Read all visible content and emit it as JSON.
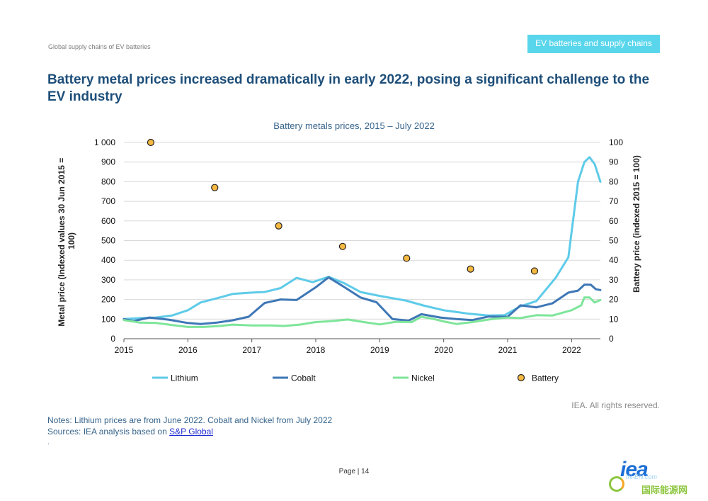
{
  "header": {
    "left_text": "Global supply chains of EV batteries",
    "right_badge": "EV batteries and supply chains"
  },
  "headline": "Battery metal prices increased dramatically in early 2022, posing a significant challenge to the EV industry",
  "chart_data": {
    "type": "line",
    "title": "Battery metals prices, 2015 – July 2022",
    "ylabel_left": "Metal price (Indexed values 30 Jun 2015 = 100)",
    "ylabel_right": "Battery price (indexed 2015 = 100)",
    "xlim": [
      2015,
      2022.45
    ],
    "ylim_left": [
      0,
      1000
    ],
    "ylim_right": [
      0,
      100
    ],
    "x_ticks": [
      "2015",
      "2016",
      "2017",
      "2018",
      "2019",
      "2020",
      "2021",
      "2022"
    ],
    "y_ticks_left": [
      "0",
      "100",
      "200",
      "300",
      "400",
      "500",
      "600",
      "700",
      "800",
      "900",
      "1 000"
    ],
    "y_ticks_right": [
      "0",
      "10",
      "20",
      "30",
      "40",
      "50",
      "60",
      "70",
      "80",
      "90",
      "100"
    ],
    "grid": true,
    "legend_position": "bottom",
    "series": [
      {
        "name": "Lithium",
        "color": "#5ecbe8",
        "type": "line",
        "axis": "left",
        "points": [
          [
            2015.0,
            100
          ],
          [
            2015.25,
            105
          ],
          [
            2015.5,
            108
          ],
          [
            2015.75,
            118
          ],
          [
            2016.0,
            145
          ],
          [
            2016.2,
            185
          ],
          [
            2016.5,
            210
          ],
          [
            2016.7,
            228
          ],
          [
            2017.0,
            235
          ],
          [
            2017.2,
            238
          ],
          [
            2017.45,
            258
          ],
          [
            2017.7,
            310
          ],
          [
            2017.95,
            288
          ],
          [
            2018.2,
            315
          ],
          [
            2018.45,
            282
          ],
          [
            2018.7,
            238
          ],
          [
            2019.0,
            218
          ],
          [
            2019.4,
            195
          ],
          [
            2019.7,
            168
          ],
          [
            2020.0,
            145
          ],
          [
            2020.4,
            127
          ],
          [
            2020.7,
            118
          ],
          [
            2020.95,
            120
          ],
          [
            2021.2,
            165
          ],
          [
            2021.45,
            192
          ],
          [
            2021.75,
            310
          ],
          [
            2021.95,
            415
          ],
          [
            2022.1,
            800
          ],
          [
            2022.2,
            900
          ],
          [
            2022.28,
            925
          ],
          [
            2022.36,
            890
          ],
          [
            2022.45,
            800
          ]
        ]
      },
      {
        "name": "Cobalt",
        "color": "#3e77b6",
        "type": "line",
        "axis": "left",
        "points": [
          [
            2015.0,
            100
          ],
          [
            2015.15,
            90
          ],
          [
            2015.4,
            108
          ],
          [
            2015.7,
            97
          ],
          [
            2016.0,
            80
          ],
          [
            2016.2,
            75
          ],
          [
            2016.45,
            82
          ],
          [
            2016.7,
            94
          ],
          [
            2016.95,
            112
          ],
          [
            2017.2,
            182
          ],
          [
            2017.45,
            200
          ],
          [
            2017.7,
            197
          ],
          [
            2018.0,
            262
          ],
          [
            2018.2,
            313
          ],
          [
            2018.45,
            262
          ],
          [
            2018.7,
            210
          ],
          [
            2018.95,
            186
          ],
          [
            2019.2,
            100
          ],
          [
            2019.45,
            92
          ],
          [
            2019.65,
            125
          ],
          [
            2019.95,
            108
          ],
          [
            2020.2,
            100
          ],
          [
            2020.45,
            95
          ],
          [
            2020.7,
            113
          ],
          [
            2021.0,
            112
          ],
          [
            2021.2,
            170
          ],
          [
            2021.45,
            160
          ],
          [
            2021.7,
            180
          ],
          [
            2021.95,
            235
          ],
          [
            2022.1,
            245
          ],
          [
            2022.2,
            275
          ],
          [
            2022.3,
            275
          ],
          [
            2022.38,
            252
          ],
          [
            2022.45,
            248
          ]
        ]
      },
      {
        "name": "Nickel",
        "color": "#7ee59a",
        "type": "line",
        "axis": "left",
        "points": [
          [
            2015.0,
            95
          ],
          [
            2015.25,
            82
          ],
          [
            2015.5,
            80
          ],
          [
            2015.75,
            70
          ],
          [
            2016.0,
            60
          ],
          [
            2016.25,
            60
          ],
          [
            2016.5,
            65
          ],
          [
            2016.7,
            72
          ],
          [
            2017.0,
            68
          ],
          [
            2017.3,
            68
          ],
          [
            2017.5,
            65
          ],
          [
            2017.75,
            72
          ],
          [
            2018.0,
            85
          ],
          [
            2018.25,
            90
          ],
          [
            2018.5,
            98
          ],
          [
            2018.75,
            85
          ],
          [
            2019.0,
            73
          ],
          [
            2019.25,
            86
          ],
          [
            2019.5,
            85
          ],
          [
            2019.65,
            112
          ],
          [
            2019.85,
            100
          ],
          [
            2020.0,
            88
          ],
          [
            2020.2,
            75
          ],
          [
            2020.45,
            85
          ],
          [
            2020.75,
            100
          ],
          [
            2021.0,
            108
          ],
          [
            2021.2,
            105
          ],
          [
            2021.45,
            120
          ],
          [
            2021.7,
            118
          ],
          [
            2022.0,
            145
          ],
          [
            2022.15,
            170
          ],
          [
            2022.2,
            210
          ],
          [
            2022.28,
            210
          ],
          [
            2022.36,
            185
          ],
          [
            2022.45,
            197
          ]
        ]
      },
      {
        "name": "Battery",
        "color": "#f5b942",
        "type": "scatter",
        "axis": "right",
        "points": [
          [
            2015.42,
            100
          ],
          [
            2016.42,
            77
          ],
          [
            2017.42,
            57.5
          ],
          [
            2018.42,
            47
          ],
          [
            2019.42,
            41
          ],
          [
            2020.42,
            35.5
          ],
          [
            2021.42,
            34.5
          ]
        ]
      }
    ]
  },
  "rights": "IEA. All rights reserved.",
  "notes": {
    "line1": "Notes: Lithium prices are from June 2022. Cobalt and Nickel from July 2022",
    "line2_prefix": "Sources: IEA analysis based on ",
    "line2_link": "S&P Global",
    "trailing": "."
  },
  "page": {
    "label": "Page | 14"
  },
  "logo": {
    "text": "iea",
    "watermark_url": "IN-EN.com",
    "watermark_cn": "国际能源网"
  }
}
